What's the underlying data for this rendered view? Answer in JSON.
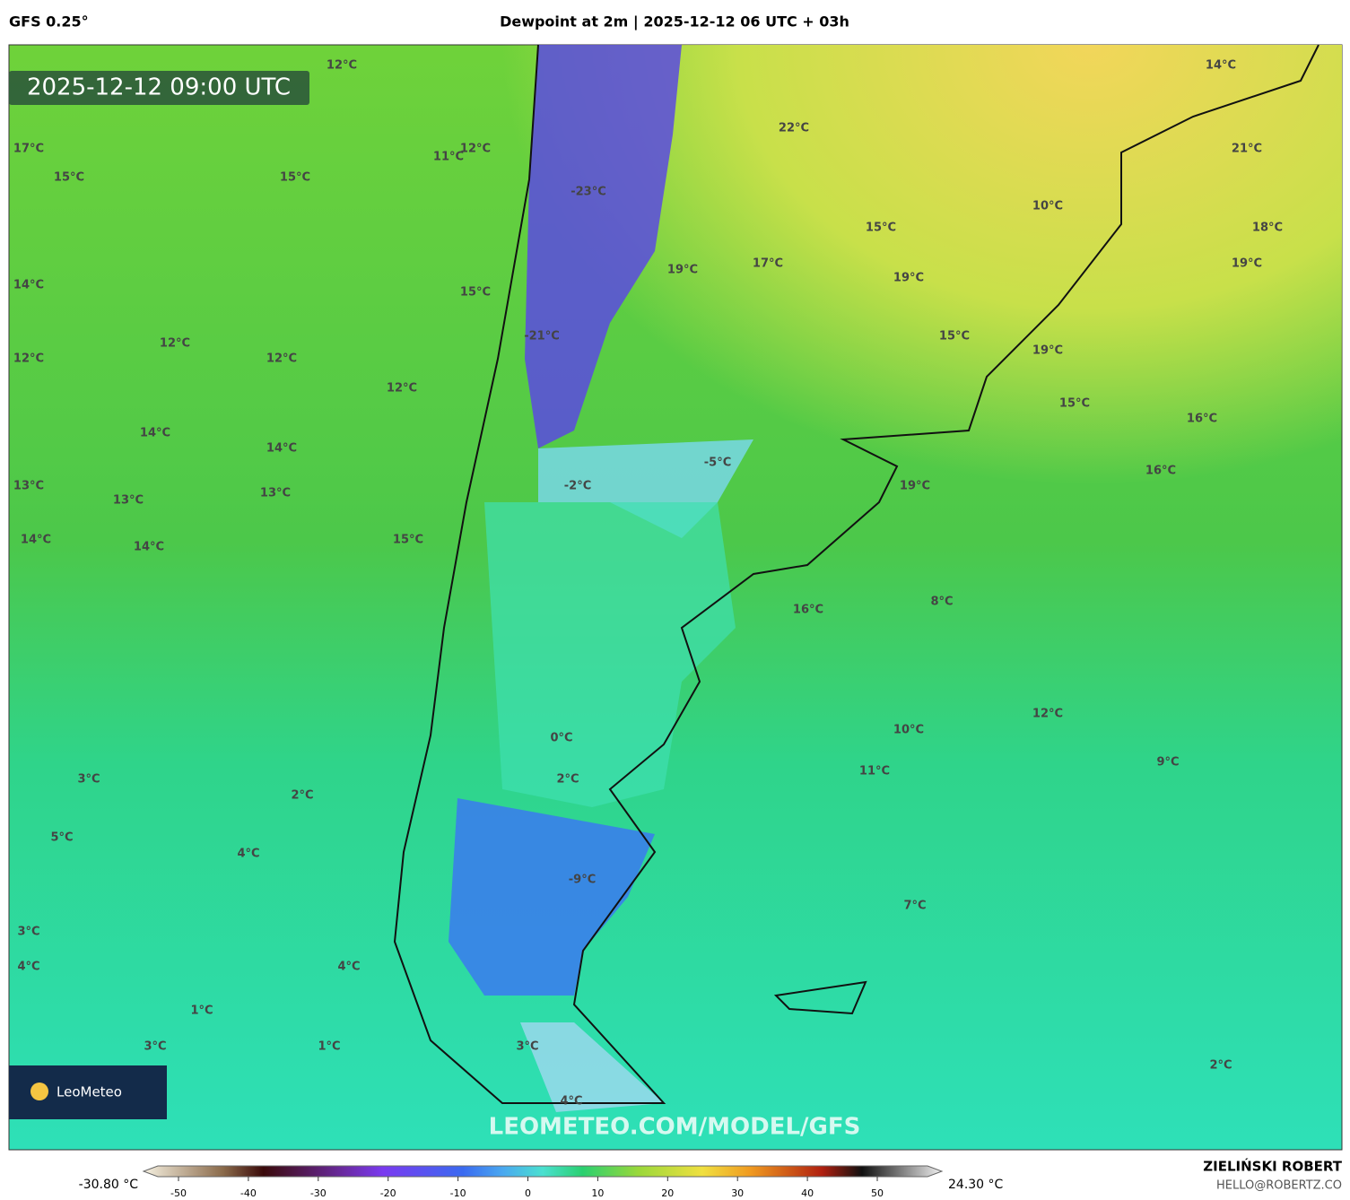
{
  "header": {
    "model": "GFS 0.25°",
    "title": "Dewpoint at 2m | 2025-12-12 06 UTC + 03h"
  },
  "timestamp": "2025-12-12 09:00 UTC",
  "map_labels": [
    "12°C",
    "14°C",
    "22°C",
    "17°C",
    "12°C",
    "11°C",
    "21°C",
    "15°C",
    "15°C",
    "-23°C",
    "10°C",
    "15°C",
    "18°C",
    "19°C",
    "17°C",
    "19°C",
    "19°C",
    "14°C",
    "15°C",
    "-21°C",
    "15°C",
    "12°C",
    "19°C",
    "12°C",
    "12°C",
    "12°C",
    "15°C",
    "16°C",
    "14°C",
    "14°C",
    "-5°C",
    "16°C",
    "13°C",
    "-2°C",
    "19°C",
    "13°C",
    "13°C",
    "14°C",
    "14°C",
    "15°C",
    "8°C",
    "16°C",
    "12°C",
    "10°C",
    "0°C",
    "9°C",
    "11°C",
    "3°C",
    "2°C",
    "2°C",
    "5°C",
    "4°C",
    "-9°C",
    "7°C",
    "3°C",
    "4°C",
    "4°C",
    "1°C",
    "3°C",
    "1°C",
    "3°C",
    "2°C",
    "4°C"
  ],
  "logo": "LeoMeteo",
  "watermark": "LEOMETEO.COM/MODEL/GFS",
  "colorbar": {
    "min_label": "-30.80 °C",
    "max_label": "24.30 °C",
    "ticks": [
      -50,
      -40,
      -30,
      -20,
      -10,
      0,
      10,
      20,
      30,
      40,
      50
    ]
  },
  "credit": {
    "author": "ZIELIŃSKI ROBERT",
    "email": "HELLO@ROBERTZ.CO"
  }
}
